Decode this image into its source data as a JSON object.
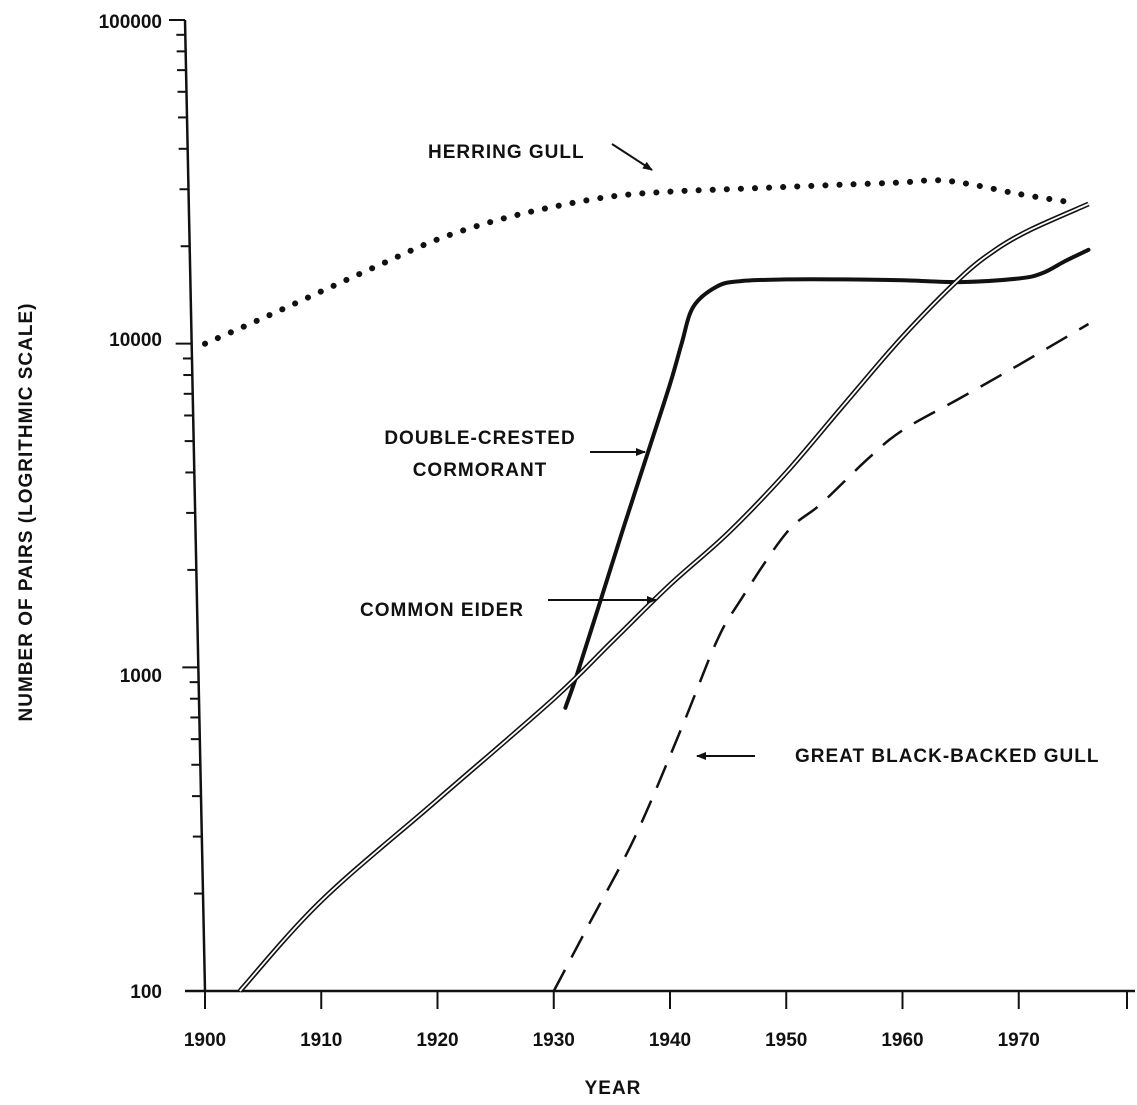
{
  "chart_data": {
    "type": "line",
    "title": "",
    "xlabel": "YEAR",
    "ylabel": "NUMBER OF PAIRS (LOGRITHMIC SCALE)",
    "xscale": "linear",
    "yscale": "log",
    "xlim": [
      1900,
      1980
    ],
    "ylim": [
      100,
      100000
    ],
    "x_ticks": [
      1900,
      1910,
      1920,
      1930,
      1940,
      1950,
      1960,
      1970
    ],
    "y_tick_labels": [
      "100",
      "1000",
      "10000",
      "100000"
    ],
    "legend": "none (series labeled by annotations with arrows)",
    "grid": false,
    "series": [
      {
        "name": "HERRING GULL",
        "style": "dotted",
        "points": [
          [
            1900,
            10000
          ],
          [
            1905,
            12000
          ],
          [
            1910,
            14500
          ],
          [
            1915,
            17500
          ],
          [
            1920,
            21000
          ],
          [
            1925,
            24000
          ],
          [
            1930,
            26500
          ],
          [
            1935,
            28500
          ],
          [
            1940,
            29500
          ],
          [
            1945,
            30000
          ],
          [
            1950,
            30500
          ],
          [
            1955,
            31000
          ],
          [
            1960,
            31500
          ],
          [
            1963,
            32000
          ],
          [
            1966,
            31000
          ],
          [
            1970,
            29000
          ],
          [
            1974,
            27500
          ]
        ]
      },
      {
        "name": "DOUBLE-CRESTED CORMORANT",
        "style": "solid-thick",
        "points": [
          [
            1931,
            750
          ],
          [
            1932,
            950
          ],
          [
            1934,
            1600
          ],
          [
            1936,
            2700
          ],
          [
            1938,
            4500
          ],
          [
            1940,
            7500
          ],
          [
            1941,
            10000
          ],
          [
            1942,
            13000
          ],
          [
            1944,
            15000
          ],
          [
            1946,
            15600
          ],
          [
            1950,
            15800
          ],
          [
            1955,
            15800
          ],
          [
            1960,
            15700
          ],
          [
            1965,
            15500
          ],
          [
            1970,
            15900
          ],
          [
            1972,
            16500
          ],
          [
            1974,
            18000
          ],
          [
            1976,
            19500
          ]
        ]
      },
      {
        "name": "COMMON EIDER",
        "style": "double-line",
        "points": [
          [
            1903,
            100
          ],
          [
            1910,
            190
          ],
          [
            1920,
            390
          ],
          [
            1930,
            800
          ],
          [
            1935,
            1200
          ],
          [
            1940,
            1800
          ],
          [
            1945,
            2600
          ],
          [
            1950,
            4000
          ],
          [
            1955,
            6500
          ],
          [
            1960,
            10500
          ],
          [
            1965,
            16000
          ],
          [
            1968,
            19500
          ],
          [
            1971,
            22500
          ],
          [
            1976,
            27000
          ]
        ]
      },
      {
        "name": "GREAT BLACK-BACKED GULL",
        "style": "dashed",
        "points": [
          [
            1930,
            100
          ],
          [
            1933,
            160
          ],
          [
            1937,
            300
          ],
          [
            1941,
            650
          ],
          [
            1944,
            1200
          ],
          [
            1946,
            1600
          ],
          [
            1950,
            2600
          ],
          [
            1953,
            3200
          ],
          [
            1957,
            4400
          ],
          [
            1960,
            5400
          ],
          [
            1965,
            6800
          ],
          [
            1970,
            8600
          ],
          [
            1976,
            11500
          ]
        ]
      }
    ],
    "annotations": [
      {
        "text": "HERRING GULL",
        "series": "HERRING GULL"
      },
      {
        "text_lines": [
          "DOUBLE-CRESTED",
          "CORMORANT"
        ],
        "series": "DOUBLE-CRESTED CORMORANT"
      },
      {
        "text": "COMMON EIDER",
        "series": "COMMON EIDER"
      },
      {
        "text": "GREAT BLACK-BACKED GULL",
        "series": "GREAT BLACK-BACKED GULL"
      }
    ]
  }
}
